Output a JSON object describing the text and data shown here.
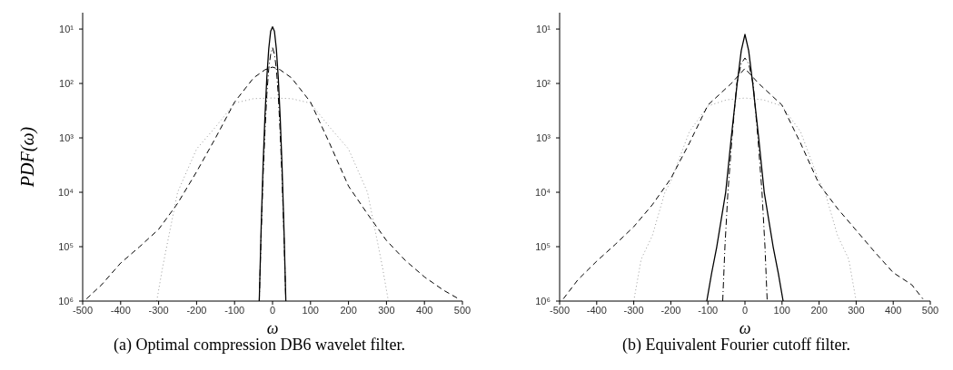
{
  "chart_data": [
    {
      "type": "line",
      "xlabel": "ω",
      "ylabel": "PDF(ω)",
      "annotations": [
        "(a) Optimal compression DB6 wavelet filter."
      ],
      "log": "y",
      "xlim": [
        -500,
        500
      ],
      "xticks": [
        -500,
        -400,
        -300,
        -200,
        -100,
        0,
        100,
        200,
        300,
        400,
        500
      ],
      "ylim": [
        1000000,
        5
      ],
      "yticks": [
        {
          "value": 10,
          "label": "10¹"
        },
        {
          "value": 100,
          "label": "10²"
        },
        {
          "value": 1000,
          "label": "10³"
        },
        {
          "value": 10000,
          "label": "10⁴"
        },
        {
          "value": 100000,
          "label": "10⁵"
        },
        {
          "value": 1000000,
          "label": "10⁶"
        }
      ],
      "series": [
        {
          "color": "#999999",
          "line_style": "dotted",
          "x": [
            -305,
            -290,
            -280,
            -250,
            -200,
            -150,
            -100,
            -50,
            0,
            50,
            100,
            150,
            200,
            250,
            280,
            290,
            305
          ],
          "values": [
            1000000,
            250000,
            110000,
            10000,
            1600,
            630,
            230,
            190,
            185,
            190,
            230,
            630,
            1600,
            10000,
            110000,
            250000,
            1000000
          ]
        },
        {
          "color": "#000000",
          "line_style": "dashed",
          "x": [
            -490,
            -450,
            -400,
            -350,
            -300,
            -250,
            -200,
            -150,
            -100,
            -50,
            -20,
            0,
            20,
            50,
            100,
            150,
            200,
            250,
            300,
            350,
            400,
            450,
            490
          ],
          "values": [
            910000,
            500000,
            200000,
            100000,
            48000,
            16000,
            4200,
            1000,
            220,
            79,
            56,
            50,
            56,
            79,
            220,
            1250,
            7700,
            25000,
            77000,
            180000,
            360000,
            630000,
            910000
          ]
        },
        {
          "color": "#000000",
          "line_style": "dashdot",
          "x": [
            -35,
            -30,
            -25,
            -20,
            -15,
            -10,
            -5,
            0,
            5,
            10,
            15,
            20,
            25,
            30,
            35
          ],
          "values": [
            1000000,
            59000,
            5300,
            770,
            160,
            53,
            29,
            22,
            29,
            53,
            160,
            770,
            5300,
            59000,
            1000000
          ]
        },
        {
          "color": "#000000",
          "line_style": "solid",
          "x": [
            -35,
            -30,
            -25,
            -20,
            -15,
            -10,
            -5,
            0,
            5,
            10,
            15,
            20,
            25,
            30,
            35
          ],
          "values": [
            1000000,
            45000,
            3300,
            400,
            77,
            23,
            11,
            9.1,
            11,
            23,
            77,
            400,
            3300,
            45000,
            1000000
          ]
        }
      ]
    },
    {
      "type": "line",
      "xlabel": "ω",
      "annotations": [
        "(b) Equivalent Fourier cutoff filter."
      ],
      "log": "y",
      "xlim": [
        -500,
        500
      ],
      "xticks": [
        -500,
        -400,
        -300,
        -200,
        -100,
        0,
        100,
        200,
        300,
        400,
        500
      ],
      "ylim": [
        1000000,
        5
      ],
      "yticks": [
        {
          "value": 10,
          "label": "10¹"
        },
        {
          "value": 100,
          "label": "10²"
        },
        {
          "value": 1000,
          "label": "10³"
        },
        {
          "value": 10000,
          "label": "10⁴"
        },
        {
          "value": 100000,
          "label": "10⁵"
        },
        {
          "value": 1000000,
          "label": "10⁶"
        }
      ],
      "series": [
        {
          "color": "#999999",
          "line_style": "dotted",
          "x": [
            -300,
            -280,
            -250,
            -216,
            -200,
            -150,
            -100,
            -50,
            0,
            50,
            100,
            150,
            200,
            216,
            250,
            280,
            300
          ],
          "values": [
            1000000,
            170000,
            63000,
            10000,
            6300,
            770,
            260,
            200,
            185,
            200,
            260,
            770,
            6300,
            10000,
            63000,
            170000,
            1000000
          ]
        },
        {
          "color": "#000000",
          "line_style": "dashed",
          "x": [
            -490,
            -450,
            -400,
            -350,
            -300,
            -250,
            -200,
            -150,
            -100,
            -37,
            0,
            37,
            100,
            150,
            200,
            250,
            300,
            350,
            400,
            450,
            480
          ],
          "values": [
            910000,
            400000,
            185000,
            91000,
            43000,
            17000,
            5600,
            1250,
            250,
            100,
            53,
            100,
            250,
            1250,
            7100,
            20000,
            50000,
            125000,
            300000,
            500000,
            910000
          ]
        },
        {
          "color": "#000000",
          "line_style": "dashdot",
          "x": [
            -60,
            -54,
            -46,
            -35,
            -22,
            -10,
            0,
            10,
            22,
            35,
            46,
            54,
            60
          ],
          "values": [
            1000000,
            100000,
            10000,
            1000,
            100,
            43,
            34,
            43,
            100,
            1000,
            10000,
            100000,
            1000000
          ]
        },
        {
          "color": "#000000",
          "line_style": "solid",
          "x": [
            -103,
            -90,
            -76,
            -52,
            -37,
            -21,
            -10,
            0,
            10,
            21,
            37,
            52,
            76,
            90,
            103
          ],
          "values": [
            1000000,
            310000,
            100000,
            10000,
            1000,
            100,
            25,
            12.5,
            25,
            100,
            1000,
            10000,
            100000,
            310000,
            1000000
          ]
        }
      ]
    }
  ]
}
